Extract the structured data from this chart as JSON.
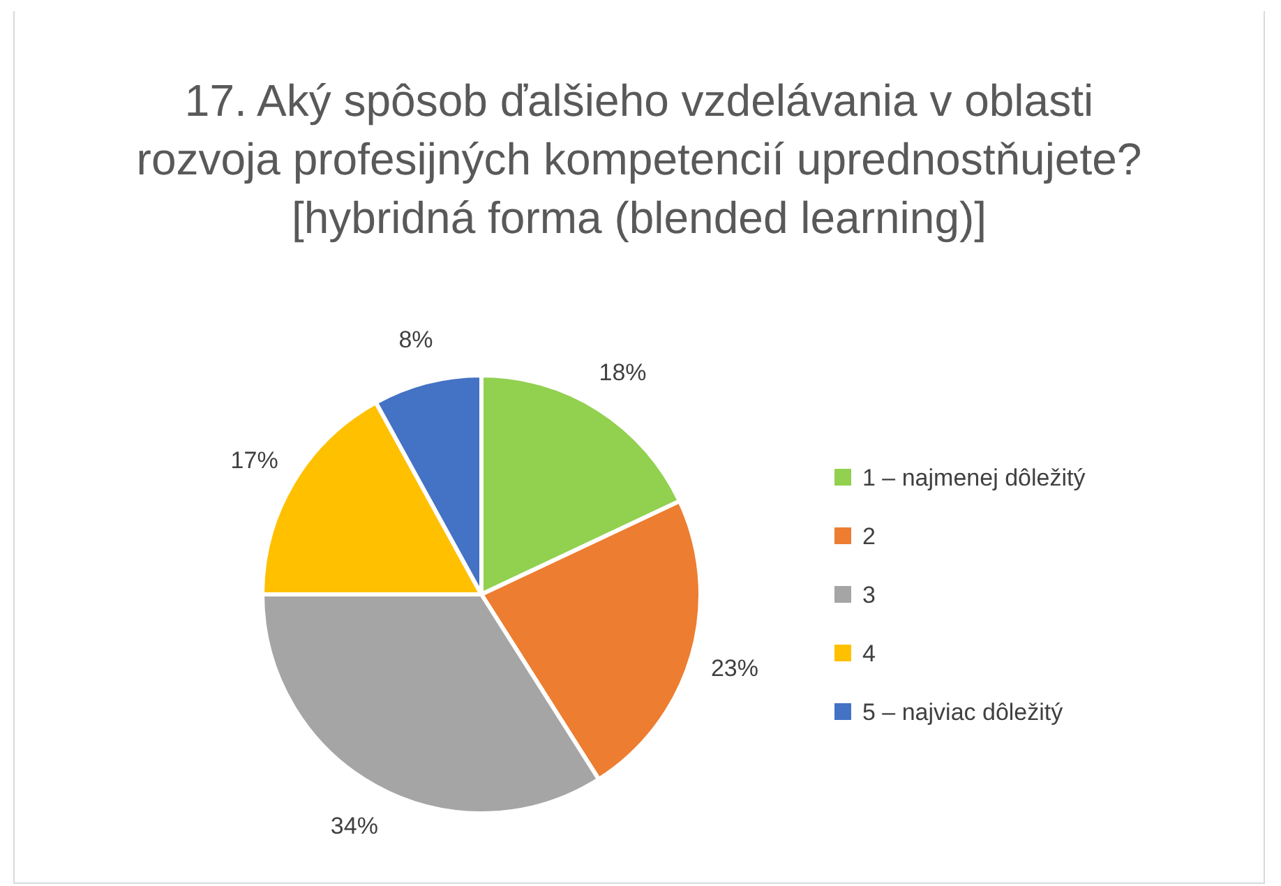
{
  "chart_data": {
    "type": "pie",
    "title": "17. Aký spôsob ďalšieho vzdelávania v oblasti rozvoja profesijných kompetencií uprednostňujete? [hybridná forma (blended learning)]",
    "categories": [
      "1 – najmenej dôležitý",
      "2",
      "3",
      "4",
      "5 – najviac dôležitý"
    ],
    "values": [
      18,
      23,
      34,
      17,
      8
    ],
    "colors": [
      "#92d050",
      "#ed7d31",
      "#a5a5a5",
      "#ffc000",
      "#4472c4"
    ],
    "value_labels": [
      "18%",
      "23%",
      "34%",
      "17%",
      "8%"
    ],
    "legend": "right"
  }
}
